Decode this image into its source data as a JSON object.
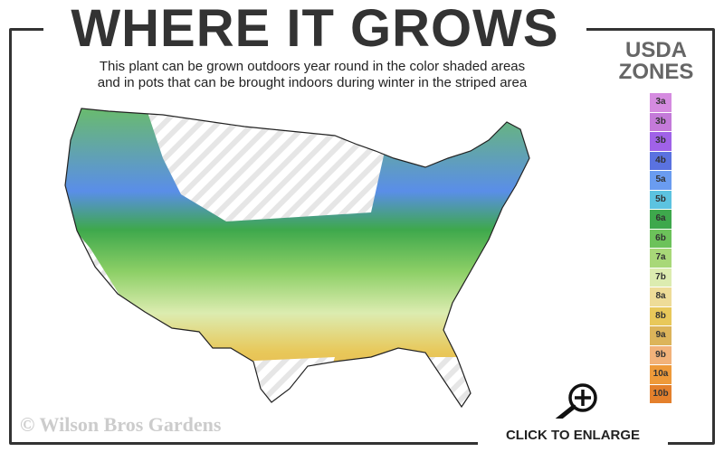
{
  "header": {
    "title": "WHERE IT GROWS",
    "subtitle_line1": "This plant can be grown outdoors year round in the color shaded areas",
    "subtitle_line2": "and in pots that can be brought indoors during winter in the striped area"
  },
  "legend": {
    "title_line1": "USDA",
    "title_line2": "ZONES",
    "zones": [
      {
        "label": "3a",
        "color": "#d58be0"
      },
      {
        "label": "3b",
        "color": "#c47ad9"
      },
      {
        "label": "3b",
        "color": "#a062e8"
      },
      {
        "label": "4b",
        "color": "#5a72e0"
      },
      {
        "label": "5a",
        "color": "#6a9cf0"
      },
      {
        "label": "5b",
        "color": "#5cc3e0"
      },
      {
        "label": "6a",
        "color": "#3ea84c"
      },
      {
        "label": "6b",
        "color": "#6cc25a"
      },
      {
        "label": "7a",
        "color": "#a8d878"
      },
      {
        "label": "7b",
        "color": "#dcecb0"
      },
      {
        "label": "8a",
        "color": "#eedc98"
      },
      {
        "label": "8b",
        "color": "#e8c85a"
      },
      {
        "label": "9a",
        "color": "#dcb45a"
      },
      {
        "label": "9b",
        "color": "#f2b27a"
      },
      {
        "label": "10a",
        "color": "#ee9a3a"
      },
      {
        "label": "10b",
        "color": "#e4802c"
      }
    ]
  },
  "footer": {
    "copyright": "© Wilson Bros Gardens",
    "enlarge_label": "CLICK TO ENLARGE"
  }
}
